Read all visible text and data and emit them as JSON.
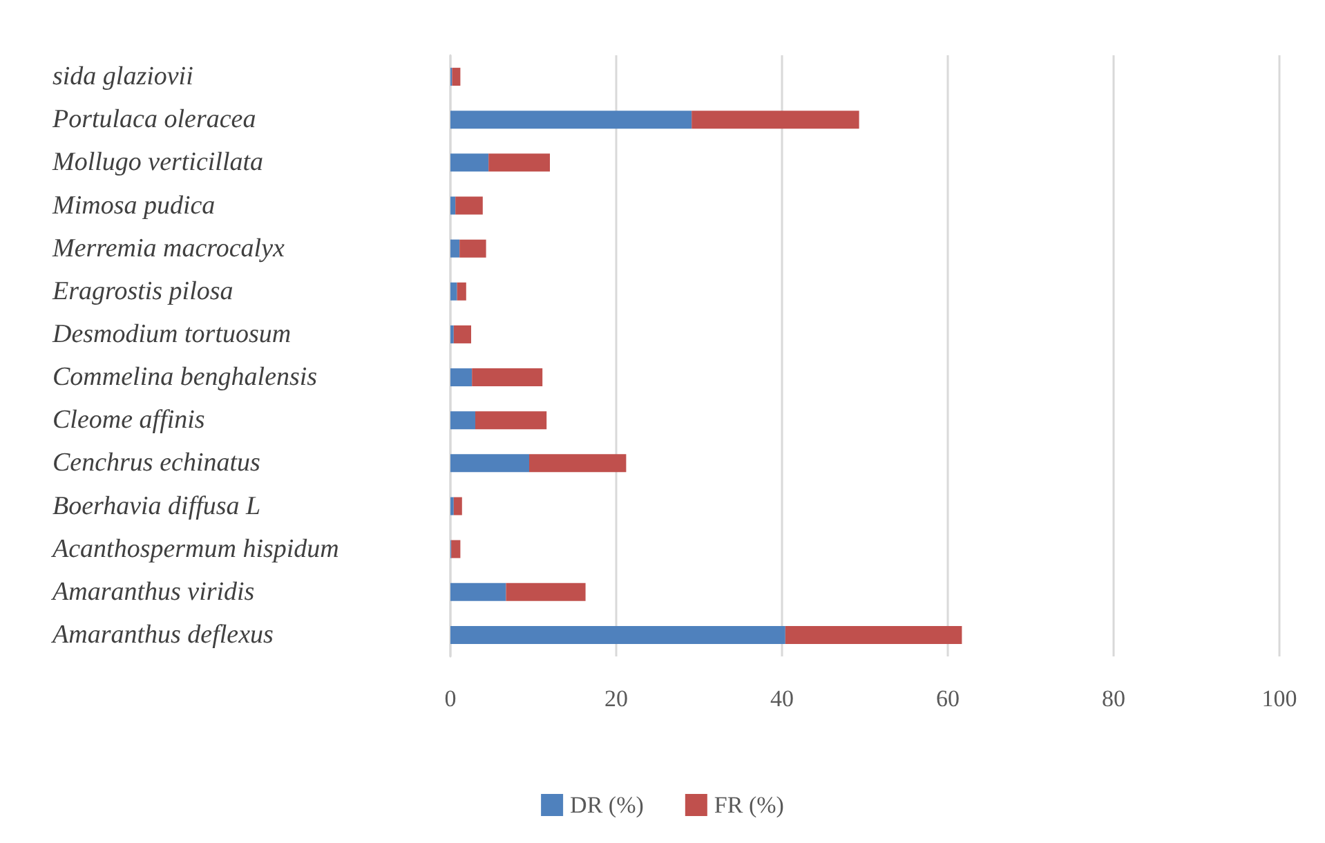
{
  "chart_data": {
    "type": "bar",
    "orientation": "horizontal",
    "stacked": true,
    "categories": [
      "sida glaziovii",
      "Portulaca oleracea",
      "Mollugo verticillata",
      "Mimosa pudica",
      "Merremia macrocalyx",
      "Eragrostis pilosa",
      "Desmodium tortuosum",
      "Commelina benghalensis",
      "Cleome affinis",
      "Cenchrus echinatus",
      "Boerhavia diffusa L",
      "Acanthospermum hispidum",
      "Amaranthus viridis",
      "Amaranthus deflexus"
    ],
    "series": [
      {
        "name": "DR (%)",
        "color": "#4f81bd",
        "values": [
          0.2,
          29.1,
          4.6,
          0.6,
          1.1,
          0.8,
          0.4,
          2.6,
          3.0,
          9.5,
          0.4,
          0.1,
          6.7,
          40.4
        ]
      },
      {
        "name": "FR (%)",
        "color": "#c0504d",
        "values": [
          1.0,
          20.2,
          7.4,
          3.3,
          3.2,
          1.1,
          2.1,
          8.5,
          8.6,
          11.7,
          1.0,
          1.1,
          9.6,
          21.3
        ]
      }
    ],
    "xlim": [
      0,
      100
    ],
    "xticks": [
      0,
      20,
      40,
      60,
      80,
      100
    ],
    "grid": "x",
    "legend": "bottom"
  }
}
